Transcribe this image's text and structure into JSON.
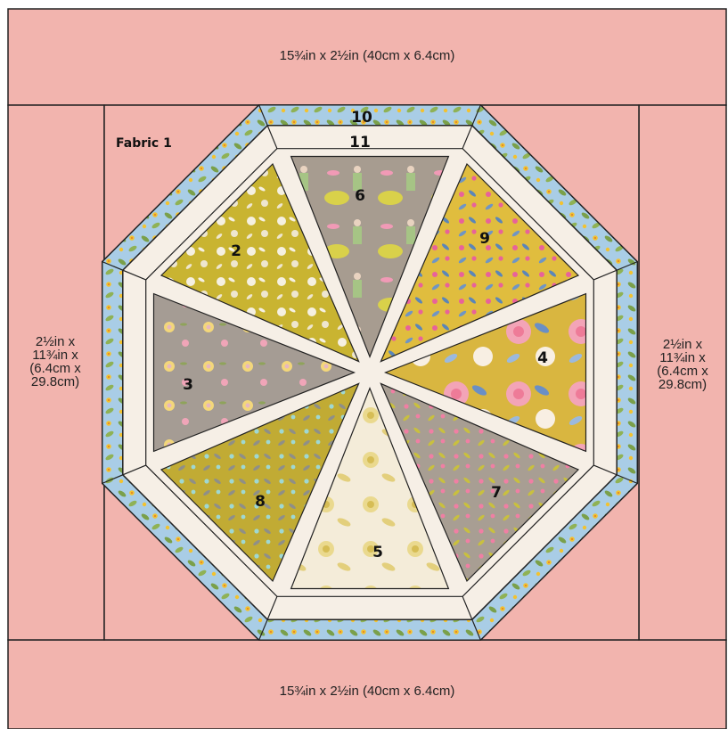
{
  "strips": {
    "top": "15¾in x 2½in (40cm x 6.4cm)",
    "bottom": "15¾in x 2½in (40cm x 6.4cm)",
    "left": [
      "2½in x",
      "11¾in x",
      "(6.4cm x",
      "29.8cm)"
    ],
    "right": [
      "2½in x",
      "11¾in x",
      "(6.4cm x",
      "29.8cm)"
    ]
  },
  "fabric_label": "Fabric 1",
  "wedge_numbers": [
    "2",
    "3",
    "4",
    "5",
    "6",
    "7",
    "8",
    "9"
  ],
  "border_numbers": [
    "10",
    "11"
  ],
  "colors": {
    "pink": "#f2b4ae",
    "cream": "#f6efe6",
    "blue_border": "#a9cde6",
    "mustard": "#c9b431",
    "gray": "#a59c94",
    "yellow": "#e0bd3e",
    "pale": "#f4ecd9",
    "outline": "#222222"
  },
  "icons": [
    "floral-pattern-fill",
    "leaf-vine-border-pattern"
  ]
}
